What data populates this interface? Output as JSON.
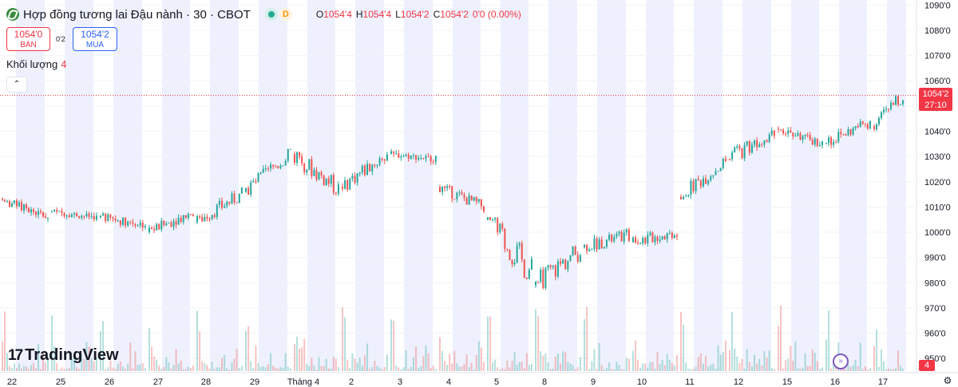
{
  "header": {
    "title": "Hợp đồng tương lai Đậu nành · 30 · CBOT",
    "flag": "D",
    "ohlc": [
      {
        "k": "O",
        "v": "1054'4"
      },
      {
        "k": "H",
        "v": "1054'4"
      },
      {
        "k": "L",
        "v": "1054'2"
      },
      {
        "k": "C",
        "v": "1054'2"
      },
      {
        "k": "",
        "v": "0'0 (0.00%)"
      }
    ]
  },
  "trade": {
    "sell_price": "1054'0",
    "sell_label": "BÁN",
    "spread": "0'2",
    "buy_price": "1054'2",
    "buy_label": "MUA"
  },
  "volume": {
    "label": "Khối lượng",
    "value": "4"
  },
  "logo": {
    "text": "TradingView"
  },
  "price_tag": {
    "price": "1054'2",
    "countdown": "27:10"
  },
  "vol_tag": "4",
  "colors": {
    "up": "#26a69a",
    "down": "#ef5350",
    "session_band": "#eef1fd",
    "last_price": "#f23645"
  },
  "chart_data": {
    "type": "candlestick",
    "title": "Hợp đồng tương lai Đậu nành · 30 · CBOT",
    "y_axis": {
      "ylim": [
        945,
        1092
      ],
      "ticks": [
        "1090'0",
        "1080'0",
        "1070'0",
        "1060'0",
        "1050'0",
        "1040'0",
        "1030'0",
        "1020'0",
        "1010'0",
        "1000'0",
        "990'0",
        "980'0",
        "970'0",
        "960'0",
        "950'0"
      ],
      "tick_values": [
        1090,
        1080,
        1070,
        1060,
        1050,
        1040,
        1030,
        1020,
        1010,
        1000,
        990,
        980,
        970,
        960,
        950
      ]
    },
    "x_axis": {
      "ticks": [
        "22",
        "25",
        "26",
        "27",
        "28",
        "29",
        "Tháng 4",
        "2",
        "3",
        "4",
        "5",
        "8",
        "9",
        "10",
        "11",
        "12",
        "15",
        "16",
        "17"
      ]
    },
    "last_price": 1054.25,
    "sessions": [
      {
        "date": "22",
        "open": 1013,
        "close": 1006,
        "high": 1014,
        "low": 1004
      },
      {
        "date": "25",
        "open": 1008,
        "close": 1006,
        "high": 1010,
        "low": 1003
      },
      {
        "date": "26",
        "open": 1006,
        "close": 1003,
        "high": 1008,
        "low": 998
      },
      {
        "date": "27",
        "open": 1000,
        "close": 1008,
        "high": 1010,
        "low": 998
      },
      {
        "date": "28",
        "open": 1004,
        "close": 1015,
        "high": 1018,
        "low": 1002
      },
      {
        "date": "29",
        "open": 1016,
        "close": 1031,
        "high": 1033,
        "low": 1014
      },
      {
        "date": "Tháng 4",
        "open": 1031,
        "close": 1017,
        "high": 1032,
        "low": 1011
      },
      {
        "date": "2",
        "open": 1018,
        "close": 1031,
        "high": 1035,
        "low": 1016
      },
      {
        "date": "3",
        "open": 1031,
        "close": 1029,
        "high": 1033,
        "low": 1026
      },
      {
        "date": "4",
        "open": 1018,
        "close": 1010,
        "high": 1020,
        "low": 1006
      },
      {
        "date": "5",
        "open": 1005,
        "close": 984,
        "high": 1006,
        "low": 970
      },
      {
        "date": "8",
        "open": 979,
        "close": 993,
        "high": 996,
        "low": 972
      },
      {
        "date": "9",
        "open": 994,
        "close": 999,
        "high": 1003,
        "low": 989
      },
      {
        "date": "10",
        "open": 996,
        "close": 1000,
        "high": 1002,
        "low": 989
      },
      {
        "date": "11",
        "open": 1014,
        "close": 1028,
        "high": 1031,
        "low": 1013
      },
      {
        "date": "12",
        "open": 1029,
        "close": 1041,
        "high": 1045,
        "low": 1025
      },
      {
        "date": "15",
        "open": 1041,
        "close": 1035,
        "high": 1043,
        "low": 1033
      },
      {
        "date": "16",
        "open": 1035,
        "close": 1044,
        "high": 1046,
        "low": 1031
      },
      {
        "date": "17",
        "open": 1042,
        "close": 1054.25,
        "high": 1056,
        "low": 1040
      }
    ]
  }
}
